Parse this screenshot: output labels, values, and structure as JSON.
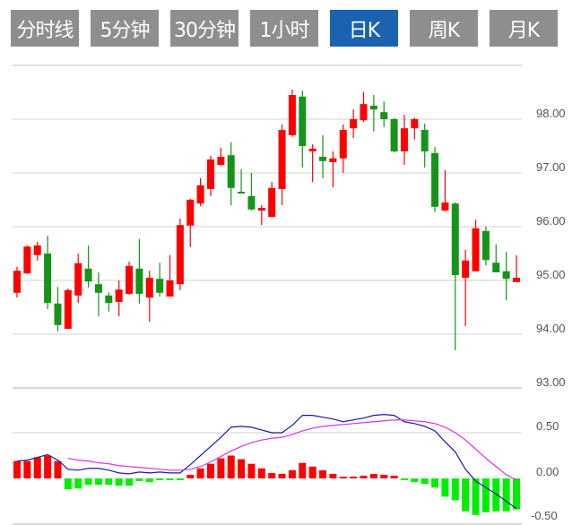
{
  "tabs": [
    {
      "label": "分时线",
      "active": false
    },
    {
      "label": "5分钟",
      "active": false
    },
    {
      "label": "30分钟",
      "active": false
    },
    {
      "label": "1小时",
      "active": false
    },
    {
      "label": "日K",
      "active": true
    },
    {
      "label": "周K",
      "active": false
    },
    {
      "label": "月K",
      "active": false
    }
  ],
  "colors": {
    "up": "#ff0000",
    "down": "#16941a",
    "hist_up": "#ff0000",
    "hist_down": "#00ee00",
    "dif": "#1a1aa0",
    "dea": "#e030e0",
    "active_tab": "#1b63b0",
    "tab": "#8e8e8e"
  },
  "chart_data": [
    {
      "type": "candlestick",
      "ylim": [
        93,
        99
      ],
      "yticks": [
        98,
        97,
        96,
        95,
        94,
        93
      ],
      "ytick_labels": [
        "98.00",
        "97.00",
        "96.00",
        "95.00",
        "94.00",
        "93.00"
      ],
      "candle_fields": [
        "open",
        "close",
        "high",
        "low"
      ],
      "candles": [
        [
          94.77,
          95.18,
          95.25,
          94.68
        ],
        [
          95.13,
          95.63,
          95.65,
          95.12
        ],
        [
          95.47,
          95.65,
          95.72,
          95.37
        ],
        [
          95.5,
          94.58,
          95.83,
          94.47
        ],
        [
          94.57,
          94.17,
          94.88,
          94.05
        ],
        [
          94.1,
          94.82,
          94.85,
          94.1
        ],
        [
          94.72,
          95.32,
          95.5,
          94.58
        ],
        [
          95.22,
          94.98,
          95.65,
          94.87
        ],
        [
          94.93,
          94.77,
          95.15,
          94.33
        ],
        [
          94.72,
          94.58,
          94.78,
          94.42
        ],
        [
          94.6,
          94.83,
          95.0,
          94.33
        ],
        [
          94.75,
          95.27,
          95.35,
          94.73
        ],
        [
          95.22,
          94.75,
          95.77,
          94.57
        ],
        [
          94.68,
          95.05,
          95.18,
          94.23
        ],
        [
          95.03,
          94.77,
          95.33,
          94.7
        ],
        [
          94.7,
          95.0,
          95.47,
          94.7
        ],
        [
          94.93,
          96.03,
          96.15,
          94.82
        ],
        [
          96.02,
          96.5,
          96.52,
          95.62
        ],
        [
          96.43,
          96.77,
          96.9,
          96.38
        ],
        [
          96.7,
          97.25,
          97.32,
          96.57
        ],
        [
          97.15,
          97.3,
          97.47,
          97.13
        ],
        [
          97.33,
          96.72,
          97.57,
          96.4
        ],
        [
          96.65,
          96.62,
          97.07,
          96.62
        ],
        [
          96.57,
          96.32,
          97.0,
          96.3
        ],
        [
          96.3,
          96.35,
          96.4,
          96.03
        ],
        [
          96.18,
          96.72,
          96.83,
          96.18
        ],
        [
          96.7,
          97.8,
          97.9,
          96.4
        ],
        [
          97.7,
          98.45,
          98.55,
          97.67
        ],
        [
          98.42,
          97.5,
          98.53,
          97.1
        ],
        [
          97.4,
          97.45,
          97.53,
          96.83
        ],
        [
          97.3,
          97.22,
          97.7,
          96.9
        ],
        [
          97.2,
          97.27,
          97.4,
          96.73
        ],
        [
          97.27,
          97.8,
          97.9,
          97.0
        ],
        [
          97.83,
          98.0,
          98.18,
          97.65
        ],
        [
          97.98,
          98.28,
          98.5,
          97.95
        ],
        [
          98.25,
          98.18,
          98.45,
          97.77
        ],
        [
          98.13,
          98.0,
          98.33,
          97.85
        ],
        [
          98.0,
          97.4,
          98.02,
          97.38
        ],
        [
          97.4,
          97.83,
          98.08,
          97.15
        ],
        [
          97.83,
          98.0,
          98.03,
          97.62
        ],
        [
          97.8,
          97.4,
          97.92,
          97.1
        ],
        [
          97.37,
          96.37,
          97.48,
          96.27
        ],
        [
          96.3,
          96.45,
          97.05,
          96.28
        ],
        [
          96.43,
          95.1,
          96.45,
          93.7
        ],
        [
          95.05,
          95.37,
          95.57,
          94.15
        ],
        [
          95.17,
          95.97,
          96.13,
          95.17
        ],
        [
          95.92,
          95.38,
          96.0,
          95.28
        ],
        [
          95.33,
          95.15,
          95.67,
          95.15
        ],
        [
          95.17,
          95.03,
          95.53,
          94.63
        ],
        [
          94.97,
          95.05,
          95.47,
          94.97
        ]
      ]
    },
    {
      "type": "macd",
      "ylim": [
        -0.5,
        0.5
      ],
      "yticks": [
        0.5,
        0,
        -0.5
      ],
      "ytick_labels": [
        "0.50",
        "0.00",
        "-0.50"
      ],
      "histogram": [
        0.19,
        0.19,
        0.23,
        0.25,
        0.19,
        -0.12,
        -0.11,
        -0.07,
        -0.07,
        -0.07,
        -0.08,
        -0.08,
        -0.03,
        -0.04,
        -0.02,
        -0.02,
        -0.02,
        0.04,
        0.11,
        0.16,
        0.22,
        0.25,
        0.21,
        0.16,
        0.11,
        0.06,
        0.05,
        0.09,
        0.17,
        0.13,
        0.09,
        0.05,
        0.02,
        0.02,
        0.03,
        0.05,
        0.04,
        0.03,
        -0.02,
        -0.04,
        -0.06,
        -0.1,
        -0.2,
        -0.24,
        -0.36,
        -0.4,
        -0.37,
        -0.36,
        -0.36,
        -0.34
      ],
      "dif": [
        0.19,
        0.2,
        0.23,
        0.26,
        0.2,
        0.1,
        0.09,
        0.11,
        0.11,
        0.09,
        0.06,
        0.05,
        0.07,
        0.06,
        0.07,
        0.06,
        0.06,
        0.15,
        0.25,
        0.35,
        0.45,
        0.56,
        0.57,
        0.56,
        0.53,
        0.5,
        0.5,
        0.58,
        0.69,
        0.69,
        0.67,
        0.65,
        0.62,
        0.64,
        0.66,
        0.69,
        0.7,
        0.69,
        0.62,
        0.6,
        0.57,
        0.52,
        0.4,
        0.29,
        0.1,
        -0.03,
        -0.1,
        -0.17,
        -0.25,
        -0.33
      ],
      "dea_start_index": 5,
      "dea": [
        0.22,
        0.2,
        0.19,
        0.17,
        0.16,
        0.14,
        0.13,
        0.12,
        0.11,
        0.1,
        0.09,
        0.09,
        0.1,
        0.13,
        0.18,
        0.24,
        0.3,
        0.35,
        0.39,
        0.42,
        0.44,
        0.45,
        0.48,
        0.52,
        0.55,
        0.57,
        0.58,
        0.59,
        0.6,
        0.61,
        0.62,
        0.63,
        0.64,
        0.64,
        0.63,
        0.62,
        0.6,
        0.56,
        0.5,
        0.42,
        0.32,
        0.22,
        0.13,
        0.04,
        -0.02
      ]
    }
  ]
}
